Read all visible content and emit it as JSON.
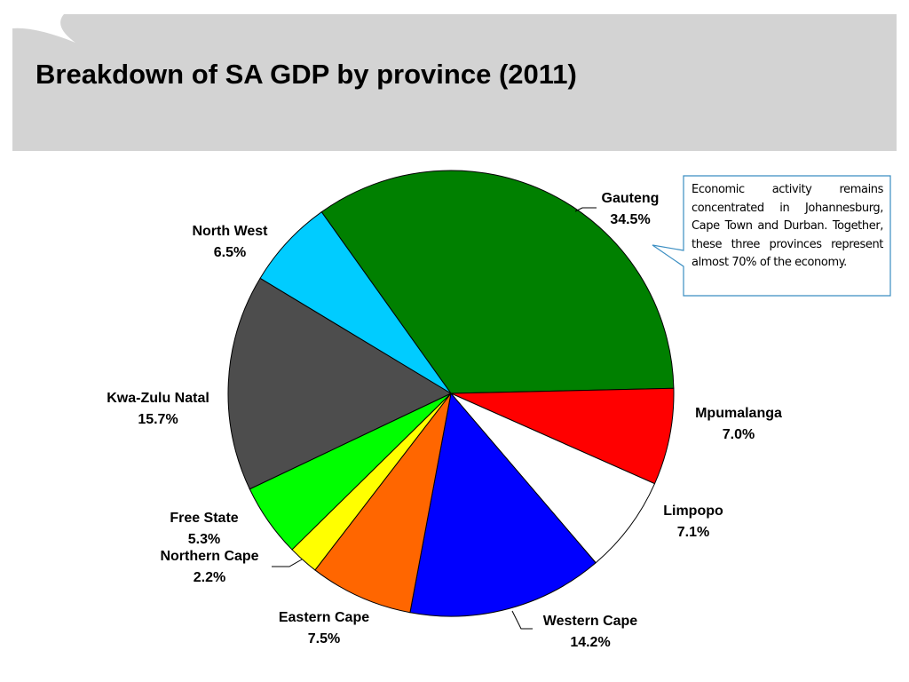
{
  "chart_data": {
    "type": "pie",
    "title": "Breakdown of SA GDP by province (2011)",
    "categories": [
      "Gauteng",
      "Mpumalanga",
      "Limpopo",
      "Western Cape",
      "Eastern Cape",
      "Northern Cape",
      "Free State",
      "Kwa-Zulu Natal",
      "North West"
    ],
    "values": [
      34.5,
      7.0,
      7.1,
      14.2,
      7.5,
      2.2,
      5.3,
      15.7,
      6.5
    ],
    "value_labels": [
      "34.5%",
      "7.0%",
      "7.1%",
      "14.2%",
      "7.5%",
      "2.2%",
      "5.3%",
      "15.7%",
      "6.5%"
    ],
    "colors": [
      "#008000",
      "#ff0000",
      "#ffffff",
      "#0000ff",
      "#ff6600",
      "#ffff00",
      "#00ff00",
      "#4d4d4d",
      "#00ccff"
    ],
    "annotation": "Economic activity remains concentrated in Johannesburg, Cape Town and Durban. Together, these three provinces represent almost 70% of the economy."
  }
}
